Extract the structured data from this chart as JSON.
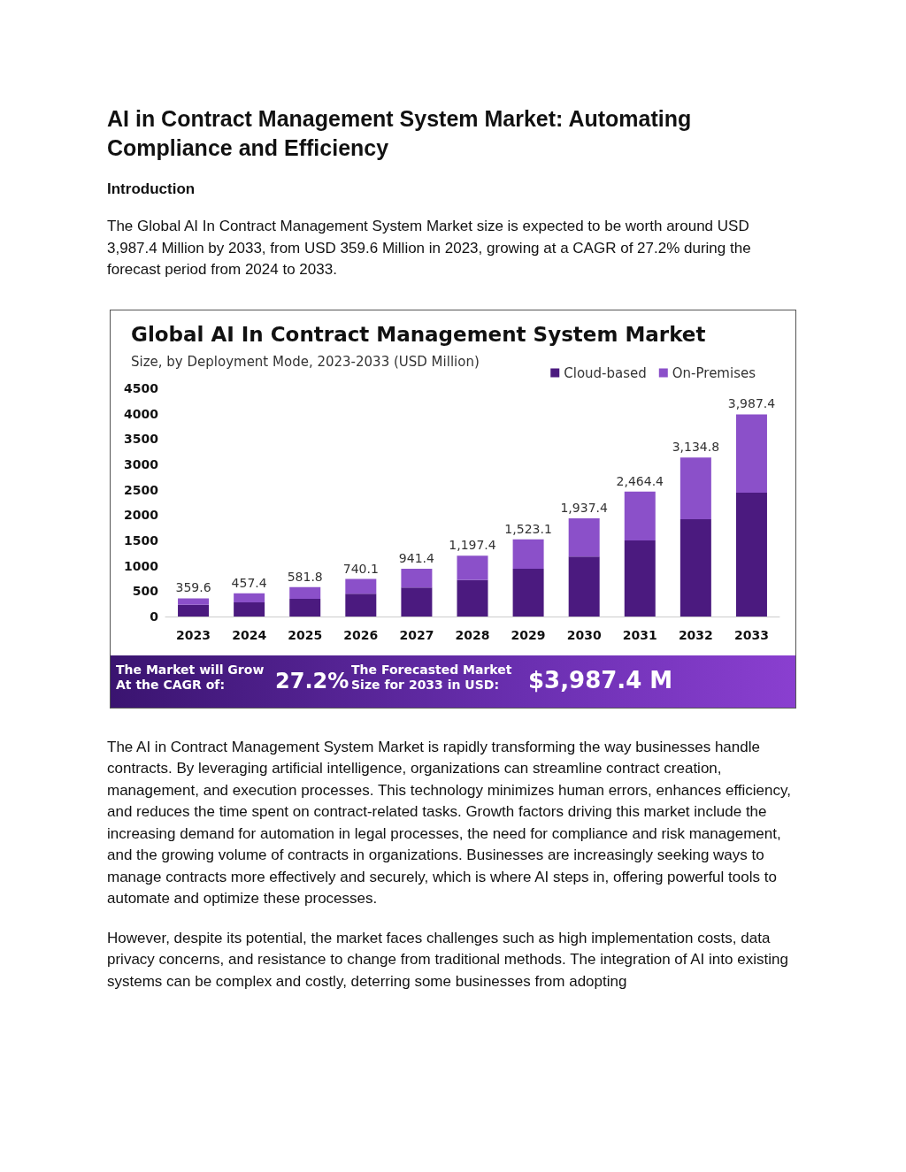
{
  "chart_data": [
    {
      "type": "other",
      "title": "AI in Contract Management System Market: Automating Compliance and Efficiency",
      "subtitle": "Introduction",
      "annotations": [
        "The Global AI In Contract Management System Market size is expected to be worth around USD 3,987.4 Million by 2033, from USD 359.6 Million in 2023, growing at a CAGR of 27.2% during the forecast period from 2024 to 2033."
      ]
    },
    {
      "type": "bar",
      "title": "Global AI In Contract Management System Market",
      "subtitle": "Size, by Deployment Mode, 2023-2033 (USD Million)",
      "categories": [
        "2023",
        "2024",
        "2025",
        "2026",
        "2027",
        "2028",
        "2029",
        "2030",
        "2031",
        "2032",
        "2033"
      ],
      "series": [
        {
          "name": "Cloud-based",
          "color": "#4b1a7f",
          "values": [
            230,
            280,
            350,
            450,
            570,
            720,
            940,
            1180,
            1500,
            1920,
            2440
          ]
        },
        {
          "name": "On-Premises",
          "color": "#8b50c9",
          "values": [
            129.6,
            177.4,
            231.8,
            290.1,
            371.4,
            477.4,
            583.1,
            757.4,
            964.4,
            1214.8,
            1547.4
          ]
        }
      ],
      "stacked": true,
      "ylim": [
        0,
        4500
      ],
      "yticks": [
        0,
        500,
        1000,
        1500,
        2000,
        2500,
        3000,
        3500,
        4000,
        4500
      ],
      "grid": false,
      "legend": "top right",
      "totals": [
        "359.6",
        "457.4",
        "581.8",
        "740.1",
        "941.4",
        "1,197.4",
        "1,523.1",
        "1,937.4",
        "2,464.4",
        "3,134.8",
        "3,987.4"
      ],
      "annotations": [
        "The Market will Grow At the CAGR of:",
        "27.2%",
        "The Forecasted Market Size for 2033 in USD:",
        "$3,987.4 M"
      ]
    },
    {
      "type": "other",
      "annotations": [
        "The AI in Contract Management System Market is rapidly transforming the way businesses handle contracts. By leveraging artificial intelligence, organizations can streamline contract creation, management, and execution processes. This technology minimizes human errors, enhances efficiency, and reduces the time spent on contract-related tasks. Growth factors driving this market include the increasing demand for automation in legal processes, the need for compliance and risk management, and the growing volume of contracts in organizations. Businesses are increasingly seeking ways to manage contracts more effectively and securely, which is where AI steps in, offering powerful tools to automate and optimize these processes.",
        "However, despite its potential, the market faces challenges such as high implementation costs, data privacy concerns, and resistance to change from traditional methods. The integration of AI into existing systems can be complex and costly, deterring some businesses from adopting"
      ]
    }
  ]
}
